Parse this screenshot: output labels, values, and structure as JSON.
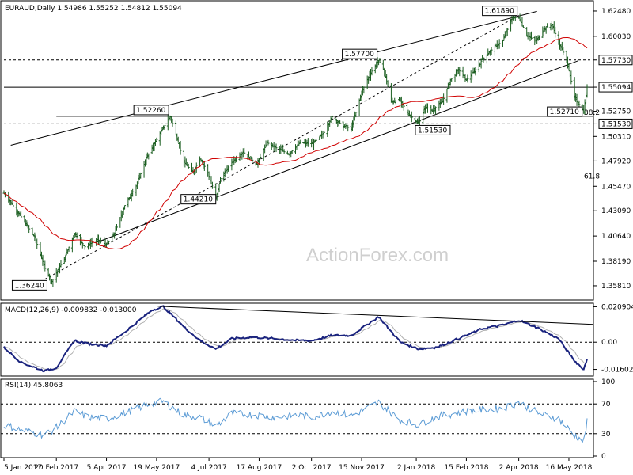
{
  "chart_data": {
    "type": "ohlc",
    "symbol": "EURAUD",
    "timeframe": "Daily",
    "ohlc_header": [
      "1.54986",
      "1.55252",
      "1.54812",
      "1.55094"
    ],
    "watermark": "ActionForex.com",
    "price_axis": {
      "ylim": [
        1.345,
        1.634
      ],
      "ticks": [
        "1.62480",
        "1.60030",
        "1.57730",
        "1.55094",
        "1.52750",
        "1.51530",
        "1.50310",
        "1.47920",
        "1.45470",
        "1.43090",
        "1.40640",
        "1.38190",
        "1.35810"
      ],
      "tick_values": [
        1.6248,
        1.6003,
        1.5773,
        1.55094,
        1.5275,
        1.5153,
        1.5031,
        1.4792,
        1.4547,
        1.4309,
        1.4064,
        1.3819,
        1.3581
      ],
      "boxed_ticks": [
        "1.57730",
        "1.55094",
        "1.51530"
      ]
    },
    "x_axis": {
      "labels": [
        "5 Jan 2017",
        "20 Feb 2017",
        "5 Apr 2017",
        "19 May 2017",
        "4 Jul 2017",
        "17 Aug 2017",
        "2 Oct 2017",
        "15 Nov 2017",
        "2 Jan 2018",
        "15 Feb 2018",
        "2 Apr 2018",
        "16 May 2018"
      ],
      "first_date": "2017-01-05",
      "last_date": "2018-06-01"
    },
    "close_anchors": [
      [
        "2017-01-05",
        1.448
      ],
      [
        "2017-01-20",
        1.425
      ],
      [
        "2017-02-01",
        1.405
      ],
      [
        "2017-02-10",
        1.375
      ],
      [
        "2017-02-16",
        1.3624
      ],
      [
        "2017-02-27",
        1.385
      ],
      [
        "2017-03-08",
        1.409
      ],
      [
        "2017-03-17",
        1.396
      ],
      [
        "2017-03-28",
        1.403
      ],
      [
        "2017-04-05",
        1.398
      ],
      [
        "2017-04-12",
        1.409
      ],
      [
        "2017-04-21",
        1.436
      ],
      [
        "2017-05-01",
        1.455
      ],
      [
        "2017-05-10",
        1.482
      ],
      [
        "2017-05-15",
        1.492
      ],
      [
        "2017-05-25",
        1.512
      ],
      [
        "2017-05-31",
        1.5226
      ],
      [
        "2017-06-05",
        1.505
      ],
      [
        "2017-06-12",
        1.478
      ],
      [
        "2017-06-20",
        1.468
      ],
      [
        "2017-06-26",
        1.482
      ],
      [
        "2017-07-03",
        1.468
      ],
      [
        "2017-07-10",
        1.4421
      ],
      [
        "2017-07-14",
        1.462
      ],
      [
        "2017-07-24",
        1.478
      ],
      [
        "2017-08-03",
        1.488
      ],
      [
        "2017-08-15",
        1.476
      ],
      [
        "2017-08-24",
        1.497
      ],
      [
        "2017-09-01",
        1.492
      ],
      [
        "2017-09-12",
        1.486
      ],
      [
        "2017-09-22",
        1.497
      ],
      [
        "2017-10-03",
        1.496
      ],
      [
        "2017-10-13",
        1.507
      ],
      [
        "2017-10-20",
        1.522
      ],
      [
        "2017-10-30",
        1.513
      ],
      [
        "2017-11-06",
        1.511
      ],
      [
        "2017-11-15",
        1.546
      ],
      [
        "2017-11-22",
        1.563
      ],
      [
        "2017-11-30",
        1.577
      ],
      [
        "2017-12-05",
        1.566
      ],
      [
        "2017-12-11",
        1.537
      ],
      [
        "2017-12-19",
        1.538
      ],
      [
        "2017-12-26",
        1.525
      ],
      [
        "2018-01-04",
        1.5153
      ],
      [
        "2018-01-10",
        1.532
      ],
      [
        "2018-01-16",
        1.528
      ],
      [
        "2018-01-25",
        1.537
      ],
      [
        "2018-02-01",
        1.558
      ],
      [
        "2018-02-08",
        1.568
      ],
      [
        "2018-02-15",
        1.558
      ],
      [
        "2018-02-22",
        1.566
      ],
      [
        "2018-03-01",
        1.578
      ],
      [
        "2018-03-09",
        1.587
      ],
      [
        "2018-03-19",
        1.596
      ],
      [
        "2018-03-27",
        1.618
      ],
      [
        "2018-04-02",
        1.6189
      ],
      [
        "2018-04-09",
        1.601
      ],
      [
        "2018-04-17",
        1.596
      ],
      [
        "2018-04-24",
        1.607
      ],
      [
        "2018-05-01",
        1.612
      ],
      [
        "2018-05-07",
        1.594
      ],
      [
        "2018-05-14",
        1.578
      ],
      [
        "2018-05-21",
        1.541
      ],
      [
        "2018-05-29",
        1.5271
      ],
      [
        "2018-06-01",
        1.55094
      ]
    ],
    "moving_average": {
      "name": "",
      "color": "#d00000"
    },
    "channel_lines": [
      {
        "name": "upper channel",
        "points": [
          [
            "2017-01-11",
            1.4945
          ],
          [
            "2018-04-18",
            1.6245
          ]
        ]
      },
      {
        "name": "lower channel",
        "points": [
          [
            "2017-03-28",
            1.4005
          ],
          [
            "2018-05-24",
            1.5765
          ]
        ]
      },
      {
        "name": "dashed trendline",
        "points": [
          [
            "2017-02-10",
            1.3645
          ],
          [
            "2018-04-02",
            1.6205
          ]
        ]
      }
    ],
    "horizontal_levels": [
      {
        "value": 1.5773,
        "style": "dashed",
        "from": "2017-01-05"
      },
      {
        "value": 1.55094,
        "style": "solid",
        "from": "2017-01-05"
      },
      {
        "value": 1.5153,
        "style": "dashed",
        "from": "2017-01-05"
      },
      {
        "value": 1.5226,
        "style": "solid",
        "from": "2017-02-20"
      },
      {
        "value": 1.4607,
        "style": "solid",
        "from": "2017-02-20"
      }
    ],
    "annotations": [
      {
        "text": "1.61890",
        "date": "2018-04-02",
        "price": 1.6189
      },
      {
        "text": "1.57700",
        "date": "2017-11-30",
        "price": 1.577
      },
      {
        "text": "1.52260",
        "date": "2017-05-31",
        "price": 1.5226
      },
      {
        "text": "1.51530",
        "date": "2018-01-04",
        "price": 1.5153
      },
      {
        "text": "1.52710",
        "date": "2018-05-29",
        "price": 1.5271
      },
      {
        "text": "1.44210",
        "date": "2017-07-10",
        "price": 1.4421
      },
      {
        "text": "1.36240",
        "date": "2017-02-16",
        "price": 1.3624
      }
    ],
    "fib_labels": [
      {
        "text": "61.8",
        "price": 1.4607
      },
      {
        "text": "38.2",
        "price": 1.5226
      }
    ],
    "macd": {
      "label": "MACD(12,26,9) -0.009832 -0.013000",
      "ylim": [
        -0.0195,
        0.0225
      ],
      "ticks": [
        "0.020904",
        "0.00",
        "-0.016023"
      ],
      "tick_values": [
        0.020904,
        0.0,
        -0.016023
      ],
      "anchors": [
        [
          "2017-01-05",
          -0.003
        ],
        [
          "2017-01-20",
          -0.012
        ],
        [
          "2017-02-10",
          -0.017
        ],
        [
          "2017-02-20",
          -0.015
        ],
        [
          "2017-03-08",
          0.001
        ],
        [
          "2017-03-20",
          -0.001
        ],
        [
          "2017-04-05",
          -0.002
        ],
        [
          "2017-04-21",
          0.006
        ],
        [
          "2017-05-15",
          0.019
        ],
        [
          "2017-05-25",
          0.021
        ],
        [
          "2017-06-12",
          0.009
        ],
        [
          "2017-06-26",
          0.001
        ],
        [
          "2017-07-10",
          -0.004
        ],
        [
          "2017-07-24",
          0.002
        ],
        [
          "2017-08-10",
          0.003
        ],
        [
          "2017-09-01",
          0.002
        ],
        [
          "2017-09-20",
          0.001
        ],
        [
          "2017-10-03",
          0.001
        ],
        [
          "2017-10-20",
          0.004
        ],
        [
          "2017-11-06",
          0.004
        ],
        [
          "2017-11-30",
          0.015
        ],
        [
          "2017-12-19",
          0.0
        ],
        [
          "2018-01-04",
          -0.004
        ],
        [
          "2018-01-20",
          -0.003
        ],
        [
          "2018-02-15",
          0.004
        ],
        [
          "2018-03-01",
          0.008
        ],
        [
          "2018-03-19",
          0.01
        ],
        [
          "2018-04-02",
          0.013
        ],
        [
          "2018-04-20",
          0.008
        ],
        [
          "2018-05-07",
          0.002
        ],
        [
          "2018-05-21",
          -0.011
        ],
        [
          "2018-05-29",
          -0.016
        ],
        [
          "2018-06-01",
          -0.0098
        ]
      ],
      "signal_color": "#b0b0b0",
      "main_color": "#1a237e",
      "trendline": {
        "points": [
          [
            "2017-05-20",
            0.0212
          ],
          [
            "2018-06-01",
            0.0105
          ]
        ]
      }
    },
    "rsi": {
      "label": "RSI(14) 45.8063",
      "ylim": [
        0,
        100
      ],
      "ticks": [
        "100",
        "70",
        "30",
        "0"
      ],
      "levels": [
        70,
        30
      ],
      "anchors": [
        [
          "2017-01-05",
          42
        ],
        [
          "2017-01-20",
          35
        ],
        [
          "2017-02-10",
          28
        ],
        [
          "2017-02-20",
          38
        ],
        [
          "2017-03-08",
          60
        ],
        [
          "2017-03-20",
          52
        ],
        [
          "2017-04-05",
          50
        ],
        [
          "2017-04-21",
          58
        ],
        [
          "2017-05-15",
          71
        ],
        [
          "2017-05-25",
          73
        ],
        [
          "2017-06-12",
          55
        ],
        [
          "2017-06-26",
          52
        ],
        [
          "2017-07-10",
          40
        ],
        [
          "2017-07-24",
          57
        ],
        [
          "2017-08-10",
          56
        ],
        [
          "2017-09-01",
          52
        ],
        [
          "2017-09-20",
          55
        ],
        [
          "2017-10-03",
          52
        ],
        [
          "2017-10-20",
          60
        ],
        [
          "2017-11-06",
          54
        ],
        [
          "2017-11-30",
          72
        ],
        [
          "2017-12-19",
          48
        ],
        [
          "2018-01-04",
          42
        ],
        [
          "2018-01-20",
          53
        ],
        [
          "2018-02-15",
          60
        ],
        [
          "2018-03-01",
          62
        ],
        [
          "2018-03-19",
          64
        ],
        [
          "2018-04-02",
          72
        ],
        [
          "2018-04-20",
          57
        ],
        [
          "2018-05-07",
          50
        ],
        [
          "2018-05-21",
          28
        ],
        [
          "2018-05-29",
          20
        ],
        [
          "2018-06-01",
          45.8063
        ]
      ],
      "color": "#5b9bd5"
    },
    "colors": {
      "bars": "#1b5e20",
      "ma": "#d00000",
      "lines": "#000000",
      "grid": "#000000"
    }
  }
}
